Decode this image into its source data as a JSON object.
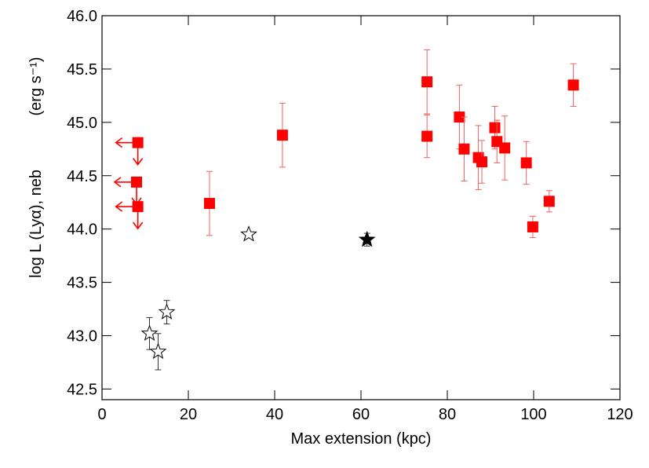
{
  "chart_data": {
    "type": "scatter",
    "x_label": "Max extension (kpc)",
    "y_label": "log L (Lyα), neb",
    "y_unit": "(erg s⁻¹)",
    "xlim": [
      0,
      120
    ],
    "ylim": [
      42.4,
      46.0
    ],
    "xticks": [
      0,
      20,
      40,
      60,
      80,
      100,
      120
    ],
    "yticks": [
      42.5,
      {
        "value": 43,
        "label": "43.0"
      },
      43.5,
      {
        "value": 44,
        "label": "44.0"
      },
      44.5,
      {
        "value": 45,
        "label": "45.0"
      },
      45.5,
      {
        "value": 46,
        "label": "46.0"
      }
    ],
    "series": [
      {
        "marker": "square",
        "color": "#ff0000",
        "upper_limit": true,
        "x": [
          8.3,
          8.0,
          8.3
        ],
        "y": [
          44.81,
          44.44,
          44.21
        ]
      },
      {
        "marker": "square",
        "color": "#ff0000",
        "x": [
          24.9,
          41.8,
          75.3,
          75.3,
          82.8,
          83.9,
          87.2,
          88.0,
          91.0,
          91.5,
          93.3,
          98.3,
          99.8,
          103.6,
          109.2
        ],
        "y": [
          44.24,
          44.88,
          45.38,
          44.87,
          45.05,
          44.75,
          44.67,
          44.63,
          44.95,
          44.82,
          44.76,
          44.62,
          44.02,
          44.26,
          45.35
        ],
        "errors": [
          0.3,
          0.3,
          0.3,
          0.2,
          0.3,
          0.3,
          0.3,
          0.2,
          0.2,
          0.2,
          0.3,
          0.2,
          0.1,
          0.1,
          0.2
        ]
      },
      {
        "marker": "open-star",
        "color": "#000000",
        "x": [
          34.0,
          11.0,
          13.0,
          15.0
        ],
        "y": [
          43.95,
          43.02,
          42.85,
          43.22
        ],
        "errors": [
          0.02,
          0.15,
          0.17,
          0.11
        ]
      },
      {
        "marker": "filled-star",
        "color": "#000000",
        "x": [
          61.4
        ],
        "y": [
          43.9
        ],
        "errors": [
          0.06
        ]
      }
    ]
  }
}
